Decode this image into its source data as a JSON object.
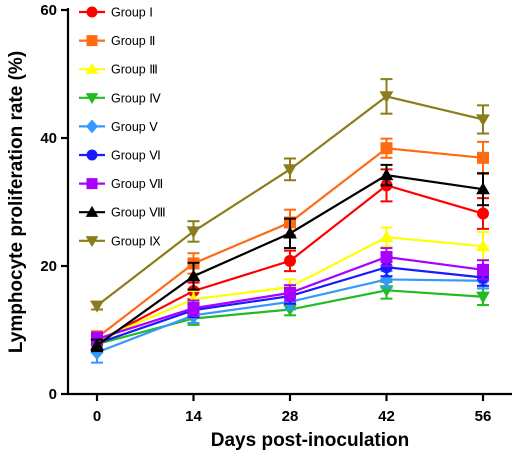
{
  "chart_data": {
    "type": "line",
    "title": "",
    "xlabel": "Days post-inoculation",
    "ylabel": "Lymphocyte proliferation rate (%)",
    "x": [
      0,
      14,
      28,
      42,
      56
    ],
    "x_tick_labels": [
      "0",
      "14",
      "28",
      "42",
      "56"
    ],
    "ylim": [
      0,
      60
    ],
    "y_ticks": [
      0,
      20,
      40,
      60
    ],
    "y_tick_labels": [
      "0",
      "20",
      "40",
      "60"
    ],
    "grid": false,
    "legend_position": "top-left",
    "series": [
      {
        "name": "Group Ⅰ",
        "color": "#ff0000",
        "marker": "circle",
        "values": [
          8.2,
          16.1,
          20.8,
          32.6,
          28.2
        ],
        "errors": [
          1.0,
          1.3,
          1.6,
          2.5,
          2.4
        ]
      },
      {
        "name": "Group Ⅱ",
        "color": "#ff6a13",
        "marker": "square",
        "values": [
          8.8,
          20.4,
          26.8,
          38.4,
          36.9
        ],
        "errors": [
          1.0,
          1.6,
          2.0,
          1.5,
          2.5
        ]
      },
      {
        "name": "Group Ⅲ",
        "color": "#ffff00",
        "marker": "triangle-up",
        "values": [
          8.4,
          14.8,
          16.7,
          24.5,
          23.1
        ],
        "errors": [
          1.0,
          1.3,
          1.2,
          1.5,
          2.2
        ]
      },
      {
        "name": "Group Ⅳ",
        "color": "#22bb22",
        "marker": "triangle-down",
        "values": [
          7.8,
          11.8,
          13.2,
          16.2,
          15.2
        ],
        "errors": [
          0.9,
          1.0,
          0.9,
          1.3,
          1.3
        ]
      },
      {
        "name": "Group Ⅴ",
        "color": "#3399ff",
        "marker": "diamond",
        "values": [
          6.5,
          12.3,
          14.4,
          17.9,
          17.7
        ],
        "errors": [
          1.6,
          1.2,
          1.2,
          1.3,
          1.2
        ]
      },
      {
        "name": "Group Ⅵ",
        "color": "#1a1aff",
        "marker": "circle",
        "values": [
          7.9,
          13.1,
          15.3,
          19.8,
          18.2
        ],
        "errors": [
          0.9,
          1.1,
          1.2,
          1.4,
          1.3
        ]
      },
      {
        "name": "Group Ⅶ",
        "color": "#aa00ff",
        "marker": "square",
        "values": [
          8.6,
          13.4,
          15.8,
          21.4,
          19.4
        ],
        "errors": [
          1.0,
          1.2,
          1.2,
          1.4,
          1.5
        ]
      },
      {
        "name": "Group Ⅷ",
        "color": "#000000",
        "marker": "triangle-up",
        "values": [
          7.6,
          18.4,
          25.1,
          34.2,
          32.0
        ],
        "errors": [
          0.9,
          2.1,
          2.3,
          1.6,
          2.5
        ]
      },
      {
        "name": "Group Ⅸ",
        "color": "#8b7d19",
        "marker": "triangle-down",
        "values": [
          13.8,
          25.4,
          35.1,
          46.5,
          42.9
        ],
        "errors": [
          0.6,
          1.6,
          1.7,
          2.7,
          2.2
        ]
      }
    ]
  }
}
